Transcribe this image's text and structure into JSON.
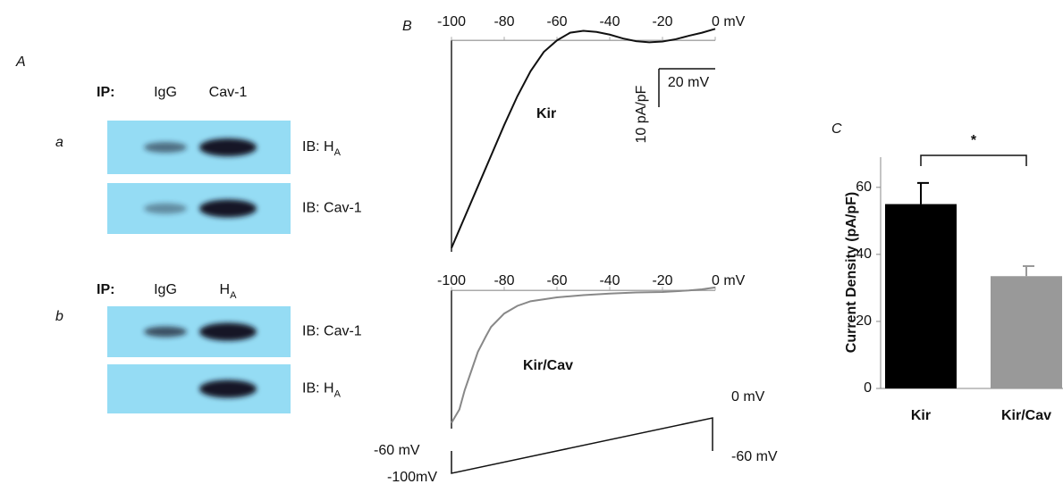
{
  "panels": [
    "A",
    "B",
    "C"
  ],
  "blots": [
    {
      "label": "a",
      "ip_label": "IP:",
      "lanes": [
        {
          "text": "IgG"
        },
        {
          "text": "Cav-1"
        }
      ],
      "ib": [
        {
          "text": "IB: H",
          "sub": "A"
        },
        {
          "text": "IB: Cav-1"
        }
      ]
    },
    {
      "label": "b",
      "ip_label": "IP:",
      "lanes": [
        {
          "text": "IgG"
        },
        {
          "text": "H",
          "sub": "A"
        }
      ],
      "ib": [
        {
          "text": "IB: Cav-1"
        },
        {
          "text": "IB: H",
          "sub": "A"
        }
      ]
    }
  ],
  "protocol": {
    "labels": [
      "0 mV",
      "-60 mV",
      "-60 mV",
      "-100mV"
    ]
  },
  "chart_data": [
    {
      "type": "line",
      "xlim": [
        -100,
        0
      ],
      "ylim": [
        -55,
        4
      ],
      "xticks": [
        -100,
        -80,
        -60,
        -40,
        -20,
        {
          "value": 0,
          "label": "0 mV"
        }
      ],
      "x": [
        -100,
        -95,
        -90,
        -85,
        -80,
        -75,
        -70,
        -65,
        -60,
        -55,
        -50,
        -45,
        -40,
        -35,
        -30,
        -25,
        -20,
        -15,
        -10,
        -5,
        0
      ],
      "series": [
        {
          "name": "Kir",
          "color": "#111111",
          "values": [
            -54,
            -46,
            -38,
            -30,
            -22,
            -14.5,
            -8,
            -3,
            0,
            2,
            2.5,
            2.2,
            1.5,
            0.5,
            -0.2,
            -0.5,
            -0.3,
            0.3,
            1.2,
            2,
            3
          ]
        }
      ],
      "scale_bar": {
        "y_label": "10 pA/pF",
        "x_label": "20 mV"
      }
    },
    {
      "type": "line",
      "xlim": [
        -100,
        0
      ],
      "ylim": [
        -36,
        1
      ],
      "xticks": [
        -100,
        -80,
        -60,
        -40,
        -20,
        {
          "value": 0,
          "label": "0 mV"
        }
      ],
      "x": [
        -100,
        -97,
        -95,
        -92,
        -90,
        -87,
        -85,
        -80,
        -75,
        -70,
        -60,
        -50,
        -40,
        -30,
        -20,
        -10,
        -5,
        0
      ],
      "series": [
        {
          "name": "Kir/Cav",
          "color": "#888888",
          "values": [
            -34.5,
            -31,
            -26,
            -20,
            -16,
            -12,
            -9.5,
            -6,
            -4,
            -2.8,
            -1.8,
            -1.2,
            -0.8,
            -0.5,
            -0.4,
            0,
            0.3,
            0.8
          ]
        }
      ]
    },
    {
      "type": "bar",
      "y_label": "Current Density (pA/pF)",
      "ylim": [
        0,
        69
      ],
      "yticks": [
        0,
        20,
        40,
        60
      ],
      "categories": [
        "Kir",
        "Kir/Cav"
      ],
      "values": [
        55,
        33.5
      ],
      "errors": [
        6.3,
        3
      ],
      "colors": [
        "#000000",
        "#999999"
      ],
      "annotation": "*"
    }
  ]
}
